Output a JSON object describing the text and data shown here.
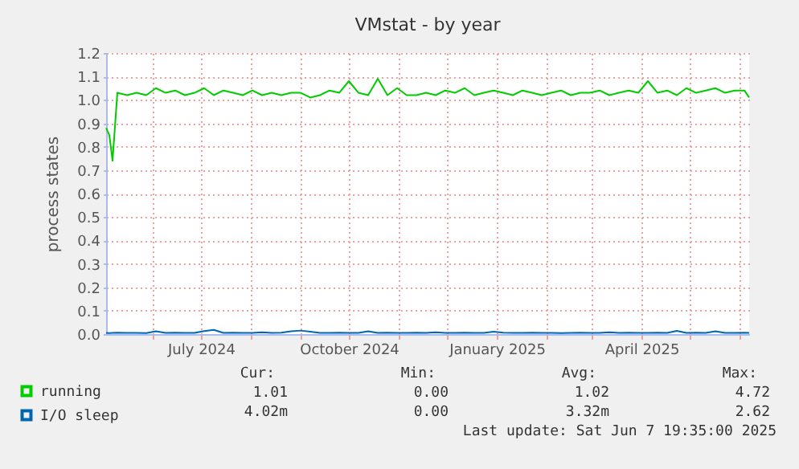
{
  "chart_data": {
    "type": "line",
    "title": "VMstat - by year",
    "ylabel": "process states",
    "x": [
      "2024-05-03",
      "2024-05-05",
      "2024-05-07",
      "2024-05-10",
      "2024-05-16",
      "2024-05-22",
      "2024-05-28",
      "2024-06-03",
      "2024-06-09",
      "2024-06-15",
      "2024-06-21",
      "2024-06-27",
      "2024-07-03",
      "2024-07-09",
      "2024-07-15",
      "2024-07-21",
      "2024-07-27",
      "2024-08-02",
      "2024-08-08",
      "2024-08-14",
      "2024-08-20",
      "2024-08-26",
      "2024-09-01",
      "2024-09-07",
      "2024-09-13",
      "2024-09-19",
      "2024-09-25",
      "2024-10-01",
      "2024-10-07",
      "2024-10-13",
      "2024-10-19",
      "2024-10-25",
      "2024-10-31",
      "2024-11-06",
      "2024-11-12",
      "2024-11-18",
      "2024-11-24",
      "2024-11-30",
      "2024-12-06",
      "2024-12-12",
      "2024-12-18",
      "2024-12-24",
      "2024-12-30",
      "2025-01-05",
      "2025-01-11",
      "2025-01-17",
      "2025-01-23",
      "2025-01-29",
      "2025-02-04",
      "2025-02-10",
      "2025-02-16",
      "2025-02-22",
      "2025-02-28",
      "2025-03-06",
      "2025-03-12",
      "2025-03-18",
      "2025-03-24",
      "2025-03-30",
      "2025-04-05",
      "2025-04-11",
      "2025-04-17",
      "2025-04-23",
      "2025-04-29",
      "2025-05-05",
      "2025-05-11",
      "2025-05-17",
      "2025-05-23",
      "2025-05-29",
      "2025-06-04",
      "2025-06-07"
    ],
    "series": [
      {
        "name": "running",
        "color": "#00cc00",
        "values": [
          0.88,
          0.85,
          0.74,
          1.03,
          1.02,
          1.03,
          1.02,
          1.05,
          1.03,
          1.04,
          1.02,
          1.03,
          1.05,
          1.02,
          1.04,
          1.03,
          1.02,
          1.04,
          1.02,
          1.03,
          1.02,
          1.03,
          1.03,
          1.01,
          1.02,
          1.04,
          1.03,
          1.08,
          1.03,
          1.02,
          1.09,
          1.02,
          1.05,
          1.02,
          1.02,
          1.03,
          1.02,
          1.04,
          1.03,
          1.05,
          1.02,
          1.03,
          1.04,
          1.03,
          1.02,
          1.04,
          1.03,
          1.02,
          1.03,
          1.04,
          1.02,
          1.03,
          1.03,
          1.04,
          1.02,
          1.03,
          1.04,
          1.03,
          1.08,
          1.03,
          1.04,
          1.02,
          1.05,
          1.03,
          1.04,
          1.05,
          1.03,
          1.04,
          1.04,
          1.01
        ]
      },
      {
        "name": "I/O sleep",
        "color": "#0066b3",
        "values": [
          0.005,
          0.004,
          0.005,
          0.006,
          0.005,
          0.005,
          0.004,
          0.012,
          0.005,
          0.006,
          0.005,
          0.005,
          0.013,
          0.018,
          0.005,
          0.006,
          0.005,
          0.005,
          0.008,
          0.005,
          0.006,
          0.012,
          0.015,
          0.01,
          0.005,
          0.005,
          0.006,
          0.005,
          0.005,
          0.012,
          0.005,
          0.006,
          0.005,
          0.005,
          0.006,
          0.005,
          0.008,
          0.005,
          0.005,
          0.006,
          0.005,
          0.005,
          0.01,
          0.006,
          0.005,
          0.005,
          0.006,
          0.005,
          0.005,
          0.004,
          0.005,
          0.006,
          0.005,
          0.005,
          0.008,
          0.005,
          0.006,
          0.005,
          0.005,
          0.006,
          0.005,
          0.014,
          0.005,
          0.006,
          0.005,
          0.012,
          0.005,
          0.005,
          0.006,
          0.005
        ]
      }
    ],
    "xlim": [
      "2024-05-03",
      "2025-06-07"
    ],
    "xticks": [
      {
        "value": "2024-06-01",
        "label": null
      },
      {
        "value": "2024-07-01",
        "label": "July 2024"
      },
      {
        "value": "2024-08-01",
        "label": null
      },
      {
        "value": "2024-09-01",
        "label": null
      },
      {
        "value": "2024-10-01",
        "label": "October 2024"
      },
      {
        "value": "2024-11-01",
        "label": null
      },
      {
        "value": "2024-12-01",
        "label": null
      },
      {
        "value": "2025-01-01",
        "label": "January 2025"
      },
      {
        "value": "2025-02-01",
        "label": null
      },
      {
        "value": "2025-03-01",
        "label": null
      },
      {
        "value": "2025-04-01",
        "label": "April 2025"
      },
      {
        "value": "2025-05-01",
        "label": null
      },
      {
        "value": "2025-06-01",
        "label": null
      }
    ],
    "ylim": [
      0,
      1.2
    ],
    "yticks": [
      {
        "value": 0,
        "label": "0.0"
      },
      {
        "value": 0.1,
        "label": "0.1"
      },
      {
        "value": 0.2,
        "label": "0.2"
      },
      {
        "value": 0.3,
        "label": "0.3"
      },
      {
        "value": 0.4,
        "label": "0.4"
      },
      {
        "value": 0.5,
        "label": "0.5"
      },
      {
        "value": 0.6,
        "label": "0.6"
      },
      {
        "value": 0.7,
        "label": "0.7"
      },
      {
        "value": 0.8,
        "label": "0.8"
      },
      {
        "value": 0.9,
        "label": "0.9"
      },
      {
        "value": 1,
        "label": "1.0"
      },
      {
        "value": 1.1,
        "label": "1.1"
      },
      {
        "value": 1.2,
        "label": "1.2"
      }
    ],
    "grid": true,
    "legend": "bottom",
    "marker": "none",
    "line_style": "solid",
    "annotations": [
      "Cur:",
      "Min:",
      "Avg:",
      "Max:",
      "1.01",
      "0.00",
      "1.02",
      "4.72",
      "4.02m",
      "0.00",
      "3.32m",
      "2.62",
      "Last update:  Sat Jun  7 19:35:00 2025"
    ]
  }
}
